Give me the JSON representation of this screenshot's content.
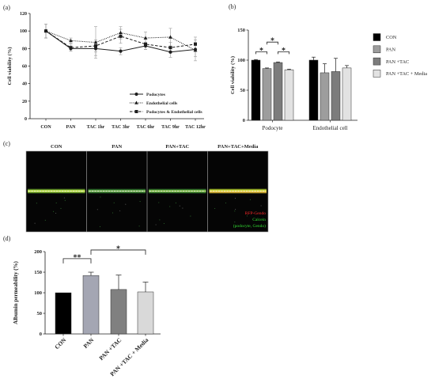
{
  "panels": {
    "a": "(a)",
    "b": "(b)",
    "c": "(c)",
    "d": "(d)"
  },
  "chart_data": [
    {
      "type": "line",
      "categories": [
        "CON",
        "PAN",
        "TAC 1hr",
        "TAC 3hr",
        "TAC 6hr",
        "TAC 9hr",
        "TAC 12hr"
      ],
      "ylabel": "Cell viability (%)",
      "ylim": [
        0,
        120
      ],
      "yticks": [
        0,
        20,
        40,
        60,
        80,
        100,
        120
      ],
      "grid": false,
      "legend_position": "bottom-right",
      "series": [
        {
          "name": "Podocytes",
          "line_style": "solid",
          "marker": "circle",
          "values": [
            100,
            80,
            80,
            77,
            83,
            76,
            79
          ],
          "error": [
            8,
            3,
            8,
            4,
            4,
            6,
            8
          ]
        },
        {
          "name": "Endothelial cells",
          "line_style": "dotted",
          "marker": "triangle",
          "values": [
            100,
            89,
            87,
            98,
            92,
            93,
            78
          ],
          "error": [
            8,
            3,
            18,
            7,
            7,
            10,
            12
          ]
        },
        {
          "name": "Podocytes & Endothelial cells",
          "line_style": "dashed",
          "marker": "square",
          "values": [
            100,
            81,
            83,
            94,
            85,
            81,
            85
          ],
          "error": [
            8,
            4,
            7,
            8,
            6,
            6,
            8
          ]
        }
      ]
    },
    {
      "type": "bar",
      "categories": [
        "Podocyte",
        "Endothelial cell"
      ],
      "ylabel": "Cell viability (%)",
      "ylim": [
        0,
        150
      ],
      "yticks": [
        0,
        50,
        100,
        150
      ],
      "grid": false,
      "legend_position": "right",
      "series": [
        {
          "name": "CON",
          "color": "#000000",
          "values": [
            100,
            100
          ],
          "error": [
            1,
            5
          ]
        },
        {
          "name": "PAN",
          "color": "#9d9d9d",
          "values": [
            86,
            79
          ],
          "error": [
            1,
            15
          ]
        },
        {
          "name": "PAN +TAC",
          "color": "#7c7c7c",
          "values": [
            96,
            81
          ],
          "error": [
            1,
            22
          ]
        },
        {
          "name": "PAN +TAC + Media",
          "color": "#e2e2e2",
          "values": [
            84,
            87
          ],
          "error": [
            1,
            4
          ]
        }
      ],
      "significance": [
        {
          "category": 0,
          "between": [
            0,
            1
          ],
          "label": "*"
        },
        {
          "category": 0,
          "between": [
            1,
            2
          ],
          "label": "*"
        },
        {
          "category": 0,
          "between": [
            2,
            3
          ],
          "label": "*"
        }
      ]
    },
    {
      "type": "bar",
      "categories": [
        "CON",
        "PAN",
        "PAN +TAC",
        "PAN +TAC + Media"
      ],
      "ylabel": "Albumin permeability (%)",
      "ylim": [
        0,
        200
      ],
      "yticks": [
        0,
        50,
        100,
        150,
        200
      ],
      "grid": false,
      "values": [
        100,
        142,
        108,
        102
      ],
      "error": [
        0,
        8,
        35,
        24
      ],
      "colors": [
        "#000000",
        "#a4a6b3",
        "#808080",
        "#d9d9d9"
      ],
      "significance": [
        {
          "between": [
            0,
            1
          ],
          "label": "**"
        },
        {
          "between": [
            1,
            3
          ],
          "label": "*"
        }
      ]
    }
  ],
  "image_panel": {
    "labels": [
      "CON",
      "PAN",
      "PAN+TAC",
      "PAN+TAC+Media"
    ],
    "legend": [
      {
        "text": "RFP-Gendo",
        "color": "#ff2a2a"
      },
      {
        "text": "Calcein",
        "color": "#33dd33"
      },
      {
        "text": "(podocyte, Gendo)",
        "color": "#33dd33"
      }
    ]
  }
}
